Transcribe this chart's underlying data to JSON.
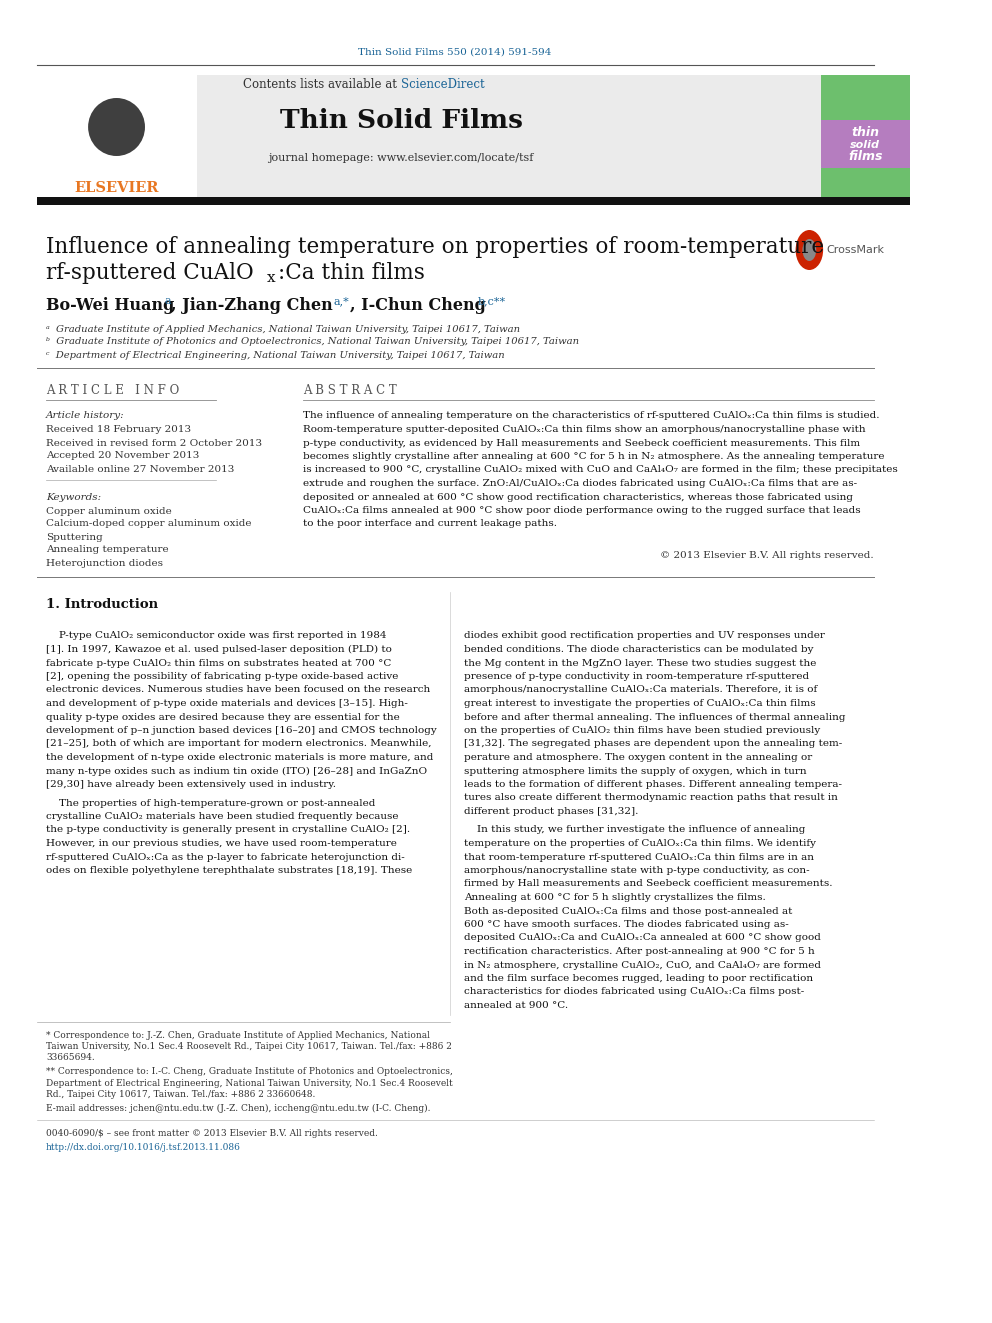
{
  "journal_ref": "Thin Solid Films 550 (2014) 591-594",
  "journal_name": "Thin Solid Films",
  "journal_homepage": "journal homepage: www.elsevier.com/locate/tsf",
  "contents_line": "Contents lists available at ScienceDirect",
  "article_info_header": "A R T I C L E   I N F O",
  "abstract_header": "A B S T R A C T",
  "article_history_label": "Article history:",
  "received": "Received 18 February 2013",
  "received_revised": "Received in revised form 2 October 2013",
  "accepted": "Accepted 20 November 2013",
  "available": "Available online 27 November 2013",
  "keywords_label": "Keywords:",
  "keyword1": "Copper aluminum oxide",
  "keyword2": "Calcium-doped copper aluminum oxide",
  "keyword3": "Sputtering",
  "keyword4": "Annealing temperature",
  "keyword5": "Heterojunction diodes",
  "copyright": "© 2013 Elsevier B.V. All rights reserved.",
  "section1_title": "1. Introduction",
  "affil_a": "ᵃ  Graduate Institute of Applied Mechanics, National Taiwan University, Taipei 10617, Taiwan",
  "affil_b": "ᵇ  Graduate Institute of Photonics and Optoelectronics, National Taiwan University, Taipei 10617, Taiwan",
  "affil_c": "ᶜ  Department of Electrical Engineering, National Taiwan University, Taipei 10617, Taiwan",
  "bottom_line1": "0040-6090/$ – see front matter © 2013 Elsevier B.V. All rights reserved.",
  "bottom_line2": "http://dx.doi.org/10.1016/j.tsf.2013.11.086",
  "bg_color": "#ffffff",
  "blue_color": "#1a6496",
  "orange_color": "#e87722",
  "abstract_lines": [
    "The influence of annealing temperature on the characteristics of rf-sputtered CuAlOₓ:Ca thin films is studied.",
    "Room-temperature sputter-deposited CuAlOₓ:Ca thin films show an amorphous/nanocrystalline phase with",
    "p-type conductivity, as evidenced by Hall measurements and Seebeck coefficient measurements. This film",
    "becomes slightly crystalline after annealing at 600 °C for 5 h in N₂ atmosphere. As the annealing temperature",
    "is increased to 900 °C, crystalline CuAlO₂ mixed with CuO and CaAl₄O₇ are formed in the film; these precipitates",
    "extrude and roughen the surface. ZnO:Al/CuAlOₓ:Ca diodes fabricated using CuAlOₓ:Ca films that are as-",
    "deposited or annealed at 600 °C show good rectification characteristics, whereas those fabricated using",
    "CuAlOₓ:Ca films annealed at 900 °C show poor diode performance owing to the rugged surface that leads",
    "to the poor interface and current leakage paths."
  ],
  "intro_left": [
    "    P-type CuAlO₂ semiconductor oxide was first reported in 1984",
    "[1]. In 1997, Kawazoe et al. used pulsed-laser deposition (PLD) to",
    "fabricate p-type CuAlO₂ thin films on substrates heated at 700 °C",
    "[2], opening the possibility of fabricating p-type oxide-based active",
    "electronic devices. Numerous studies have been focused on the research",
    "and development of p-type oxide materials and devices [3–15]. High-",
    "quality p-type oxides are desired because they are essential for the",
    "development of p–n junction based devices [16–20] and CMOS technology",
    "[21–25], both of which are important for modern electronics. Meanwhile,",
    "the development of n-type oxide electronic materials is more mature, and",
    "many n-type oxides such as indium tin oxide (ITO) [26–28] and InGaZnO",
    "[29,30] have already been extensively used in industry."
  ],
  "intro_left2": [
    "    The properties of high-temperature-grown or post-annealed",
    "crystalline CuAlO₂ materials have been studied frequently because",
    "the p-type conductivity is generally present in crystalline CuAlO₂ [2].",
    "However, in our previous studies, we have used room-temperature",
    "rf-sputtered CuAlOₓ:Ca as the p-layer to fabricate heterojunction di-",
    "odes on flexible polyethylene terephthalate substrates [18,19]. These"
  ],
  "intro_right": [
    "diodes exhibit good rectification properties and UV responses under",
    "bended conditions. The diode characteristics can be modulated by",
    "the Mg content in the MgZnO layer. These two studies suggest the",
    "presence of p-type conductivity in room-temperature rf-sputtered",
    "amorphous/nanocrystalline CuAlOₓ:Ca materials. Therefore, it is of",
    "great interest to investigate the properties of CuAlOₓ:Ca thin films",
    "before and after thermal annealing. The influences of thermal annealing",
    "on the properties of CuAlO₂ thin films have been studied previously",
    "[31,32]. The segregated phases are dependent upon the annealing tem-",
    "perature and atmosphere. The oxygen content in the annealing or",
    "sputtering atmosphere limits the supply of oxygen, which in turn",
    "leads to the formation of different phases. Different annealing tempera-",
    "tures also create different thermodynamic reaction paths that result in",
    "different product phases [31,32]."
  ],
  "intro_right2": [
    "    In this study, we further investigate the influence of annealing",
    "temperature on the properties of CuAlOₓ:Ca thin films. We identify",
    "that room-temperature rf-sputtered CuAlOₓ:Ca thin films are in an",
    "amorphous/nanocrystalline state with p-type conductivity, as con-",
    "firmed by Hall measurements and Seebeck coefficient measurements.",
    "Annealing at 600 °C for 5 h slightly crystallizes the films.",
    "Both as-deposited CuAlOₓ:Ca films and those post-annealed at",
    "600 °C have smooth surfaces. The diodes fabricated using as-",
    "deposited CuAlOₓ:Ca and CuAlOₓ:Ca annealed at 600 °C show good",
    "rectification characteristics. After post-annealing at 900 °C for 5 h",
    "in N₂ atmosphere, crystalline CuAlO₂, CuO, and CaAl₄O₇ are formed",
    "and the film surface becomes rugged, leading to poor rectification",
    "characteristics for diodes fabricated using CuAlOₓ:Ca films post-",
    "annealed at 900 °C."
  ],
  "footnote1a": "* Correspondence to: J.-Z. Chen, Graduate Institute of Applied Mechanics, National",
  "footnote1b": "Taiwan University, No.1 Sec.4 Roosevelt Rd., Taipei City 10617, Taiwan. Tel./fax: +886 2",
  "footnote1c": "33665694.",
  "footnote2a": "** Correspondence to: I.-C. Cheng, Graduate Institute of Photonics and Optoelectronics,",
  "footnote2b": "Department of Electrical Engineering, National Taiwan University, No.1 Sec.4 Roosevelt",
  "footnote2c": "Rd., Taipei City 10617, Taiwan. Tel./fax: +886 2 33660648.",
  "footnote3": "E-mail addresses: jchen@ntu.edu.tw (J.-Z. Chen), iccheng@ntu.edu.tw (I-C. Cheng)."
}
